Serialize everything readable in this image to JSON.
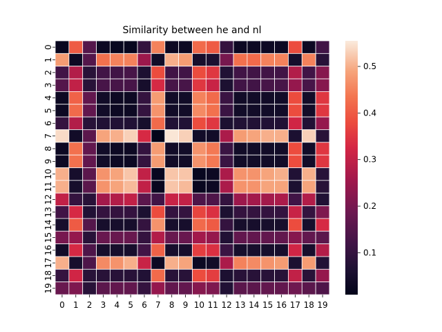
{
  "chart_data": {
    "type": "heatmap",
    "title": "Similarity between he and nl",
    "xlabel": "",
    "ylabel": "",
    "x_categories": [
      "0",
      "1",
      "2",
      "3",
      "4",
      "5",
      "6",
      "7",
      "8",
      "9",
      "10",
      "11",
      "12",
      "13",
      "14",
      "15",
      "16",
      "17",
      "18",
      "19"
    ],
    "y_categories": [
      "0",
      "1",
      "2",
      "3",
      "4",
      "5",
      "6",
      "7",
      "8",
      "9",
      "10",
      "11",
      "12",
      "13",
      "14",
      "15",
      "16",
      "17",
      "18",
      "19"
    ],
    "colorbar": {
      "range": [
        0.01,
        0.555
      ],
      "ticks": [
        "0.1",
        "0.2",
        "0.3",
        "0.4",
        "0.5"
      ],
      "colormap": "rocket"
    },
    "grid_lines": "white",
    "values": [
      [
        0.02,
        0.4,
        0.15,
        0.03,
        0.02,
        0.02,
        0.1,
        0.45,
        0.03,
        0.03,
        0.42,
        0.4,
        0.1,
        0.03,
        0.03,
        0.03,
        0.03,
        0.38,
        0.03,
        0.12
      ],
      [
        0.48,
        0.03,
        0.15,
        0.43,
        0.45,
        0.45,
        0.25,
        0.04,
        0.5,
        0.48,
        0.05,
        0.06,
        0.2,
        0.43,
        0.42,
        0.45,
        0.45,
        0.05,
        0.45,
        0.08
      ],
      [
        0.12,
        0.28,
        0.08,
        0.12,
        0.12,
        0.13,
        0.06,
        0.38,
        0.12,
        0.12,
        0.38,
        0.35,
        0.07,
        0.12,
        0.12,
        0.12,
        0.12,
        0.28,
        0.12,
        0.22
      ],
      [
        0.15,
        0.3,
        0.08,
        0.13,
        0.13,
        0.13,
        0.05,
        0.33,
        0.13,
        0.13,
        0.35,
        0.31,
        0.06,
        0.12,
        0.12,
        0.13,
        0.13,
        0.24,
        0.13,
        0.22
      ],
      [
        0.03,
        0.41,
        0.17,
        0.04,
        0.03,
        0.03,
        0.1,
        0.48,
        0.04,
        0.04,
        0.45,
        0.42,
        0.11,
        0.04,
        0.04,
        0.04,
        0.04,
        0.38,
        0.04,
        0.35
      ],
      [
        0.03,
        0.42,
        0.17,
        0.04,
        0.03,
        0.03,
        0.1,
        0.47,
        0.04,
        0.04,
        0.46,
        0.43,
        0.11,
        0.04,
        0.04,
        0.04,
        0.04,
        0.38,
        0.04,
        0.35
      ],
      [
        0.1,
        0.28,
        0.08,
        0.07,
        0.07,
        0.07,
        0.05,
        0.42,
        0.07,
        0.07,
        0.38,
        0.35,
        0.06,
        0.07,
        0.07,
        0.07,
        0.07,
        0.32,
        0.07,
        0.24
      ],
      [
        0.54,
        0.04,
        0.16,
        0.49,
        0.5,
        0.53,
        0.33,
        0.01,
        0.55,
        0.53,
        0.04,
        0.04,
        0.27,
        0.48,
        0.49,
        0.5,
        0.5,
        0.06,
        0.53,
        0.08
      ],
      [
        0.03,
        0.43,
        0.17,
        0.04,
        0.03,
        0.03,
        0.1,
        0.48,
        0.04,
        0.04,
        0.47,
        0.44,
        0.11,
        0.04,
        0.04,
        0.04,
        0.04,
        0.38,
        0.04,
        0.35
      ],
      [
        0.03,
        0.43,
        0.17,
        0.04,
        0.03,
        0.03,
        0.1,
        0.48,
        0.04,
        0.04,
        0.47,
        0.44,
        0.11,
        0.04,
        0.04,
        0.04,
        0.04,
        0.38,
        0.04,
        0.35
      ],
      [
        0.5,
        0.05,
        0.16,
        0.47,
        0.49,
        0.52,
        0.3,
        0.02,
        0.52,
        0.52,
        0.02,
        0.03,
        0.27,
        0.47,
        0.47,
        0.49,
        0.5,
        0.07,
        0.5,
        0.08
      ],
      [
        0.5,
        0.05,
        0.16,
        0.47,
        0.49,
        0.51,
        0.3,
        0.02,
        0.52,
        0.51,
        0.02,
        0.03,
        0.27,
        0.47,
        0.47,
        0.49,
        0.49,
        0.06,
        0.49,
        0.08
      ],
      [
        0.3,
        0.1,
        0.08,
        0.26,
        0.28,
        0.3,
        0.16,
        0.12,
        0.31,
        0.3,
        0.14,
        0.14,
        0.1,
        0.25,
        0.26,
        0.26,
        0.27,
        0.12,
        0.28,
        0.07
      ],
      [
        0.12,
        0.33,
        0.07,
        0.1,
        0.1,
        0.1,
        0.06,
        0.38,
        0.1,
        0.1,
        0.37,
        0.34,
        0.06,
        0.1,
        0.1,
        0.1,
        0.1,
        0.31,
        0.1,
        0.21
      ],
      [
        0.05,
        0.4,
        0.15,
        0.05,
        0.05,
        0.05,
        0.1,
        0.47,
        0.05,
        0.05,
        0.42,
        0.4,
        0.1,
        0.05,
        0.05,
        0.05,
        0.05,
        0.38,
        0.05,
        0.33
      ],
      [
        0.2,
        0.24,
        0.08,
        0.18,
        0.18,
        0.18,
        0.1,
        0.28,
        0.18,
        0.18,
        0.26,
        0.24,
        0.07,
        0.17,
        0.17,
        0.17,
        0.17,
        0.22,
        0.17,
        0.16
      ],
      [
        0.04,
        0.33,
        0.14,
        0.05,
        0.05,
        0.05,
        0.12,
        0.41,
        0.05,
        0.05,
        0.36,
        0.34,
        0.11,
        0.05,
        0.05,
        0.05,
        0.05,
        0.32,
        0.05,
        0.28
      ],
      [
        0.5,
        0.05,
        0.14,
        0.46,
        0.47,
        0.5,
        0.31,
        0.03,
        0.5,
        0.49,
        0.03,
        0.04,
        0.27,
        0.45,
        0.46,
        0.47,
        0.48,
        0.06,
        0.48,
        0.07
      ],
      [
        0.1,
        0.32,
        0.08,
        0.08,
        0.08,
        0.08,
        0.07,
        0.42,
        0.08,
        0.08,
        0.38,
        0.36,
        0.06,
        0.08,
        0.08,
        0.08,
        0.08,
        0.3,
        0.08,
        0.24
      ],
      [
        0.18,
        0.21,
        0.08,
        0.16,
        0.17,
        0.17,
        0.1,
        0.24,
        0.17,
        0.17,
        0.22,
        0.21,
        0.07,
        0.16,
        0.16,
        0.17,
        0.17,
        0.19,
        0.16,
        0.14
      ]
    ]
  }
}
